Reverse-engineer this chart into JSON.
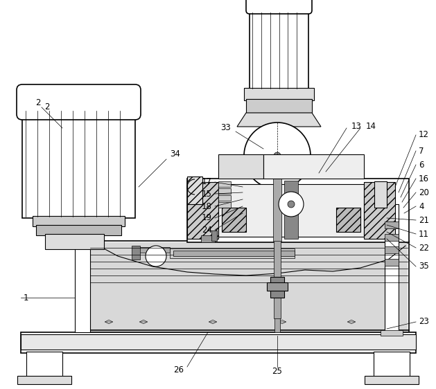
{
  "bg_color": "#ffffff",
  "lw_thin": 0.5,
  "lw_med": 0.8,
  "lw_thick": 1.2,
  "label_fs": 8.5,
  "fig_w": 6.29,
  "fig_h": 5.62
}
